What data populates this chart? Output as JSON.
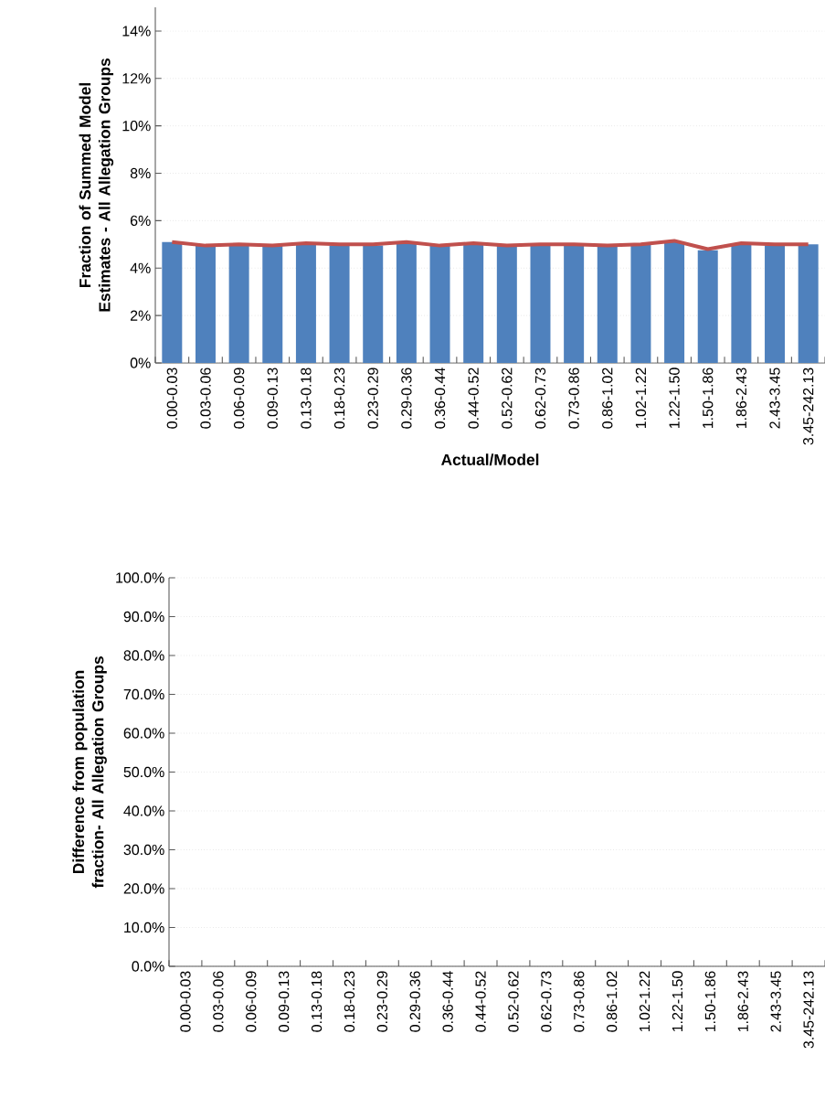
{
  "chart_data": [
    {
      "type": "bar",
      "xlabel": "Actual/Model",
      "ylabel": "Fraction of Summed Model Estimates - All Allegation Groups",
      "categories": [
        "0.00-0.03",
        "0.03-0.06",
        "0.06-0.09",
        "0.09-0.13",
        "0.13-0.18",
        "0.18-0.23",
        "0.23-0.29",
        "0.29-0.36",
        "0.36-0.44",
        "0.44-0.52",
        "0.52-0.62",
        "0.62-0.73",
        "0.73-0.86",
        "0.86-1.02",
        "1.02-1.22",
        "1.22-1.50",
        "1.50-1.86",
        "1.86-2.43",
        "2.43-3.45",
        "3.45-242.13"
      ],
      "series": [
        {
          "color": "#4f81bd",
          "values": [
            5.1,
            4.95,
            4.95,
            4.95,
            5.0,
            4.95,
            4.95,
            5.05,
            4.95,
            5.0,
            4.95,
            5.0,
            5.0,
            4.95,
            5.0,
            5.1,
            4.75,
            5.0,
            4.95,
            5.0
          ]
        },
        {
          "type": "line",
          "color": "#c0504d",
          "values": [
            5.1,
            4.95,
            5.0,
            4.95,
            5.05,
            5.0,
            5.0,
            5.1,
            4.95,
            5.05,
            4.95,
            5.0,
            5.0,
            4.95,
            5.0,
            5.15,
            4.8,
            5.05,
            5.0,
            5.0
          ]
        }
      ],
      "ylim": [
        0,
        15
      ],
      "yticks": [
        {
          "value": 0,
          "label": "0%"
        },
        {
          "value": 2,
          "label": "2%"
        },
        {
          "value": 4,
          "label": "4%"
        },
        {
          "value": 6,
          "label": "6%"
        },
        {
          "value": 8,
          "label": "8%"
        },
        {
          "value": 10,
          "label": "10%"
        },
        {
          "value": 12,
          "label": "12%"
        },
        {
          "value": 14,
          "label": "14%"
        }
      ],
      "grid": "y"
    },
    {
      "type": "bar",
      "ylabel": "Difference from population fraction- All Allegation Groups",
      "categories": [
        "0.00-0.03",
        "0.03-0.06",
        "0.06-0.09",
        "0.09-0.13",
        "0.13-0.18",
        "0.18-0.23",
        "0.23-0.29",
        "0.29-0.36",
        "0.36-0.44",
        "0.44-0.52",
        "0.52-0.62",
        "0.62-0.73",
        "0.73-0.86",
        "0.86-1.02",
        "1.02-1.22",
        "1.22-1.50",
        "1.50-1.86",
        "1.86-2.43",
        "2.43-3.45",
        "3.45-242.13"
      ],
      "values": [
        null,
        null,
        null,
        null,
        null,
        null,
        null,
        null,
        null,
        null,
        null,
        null,
        null,
        null,
        null,
        null,
        null,
        null,
        null,
        null
      ],
      "ylim": [
        0,
        100
      ],
      "yticks": [
        {
          "value": 0,
          "label": "0.0%"
        },
        {
          "value": 10,
          "label": "10.0%"
        },
        {
          "value": 20,
          "label": "20.0%"
        },
        {
          "value": 30,
          "label": "30.0%"
        },
        {
          "value": 40,
          "label": "40.0%"
        },
        {
          "value": 50,
          "label": "50.0%"
        },
        {
          "value": 60,
          "label": "60.0%"
        },
        {
          "value": 70,
          "label": "70.0%"
        },
        {
          "value": 80,
          "label": "80.0%"
        },
        {
          "value": 90,
          "label": "90.0%"
        },
        {
          "value": 100,
          "label": "100.0%"
        }
      ],
      "grid": "y"
    }
  ]
}
